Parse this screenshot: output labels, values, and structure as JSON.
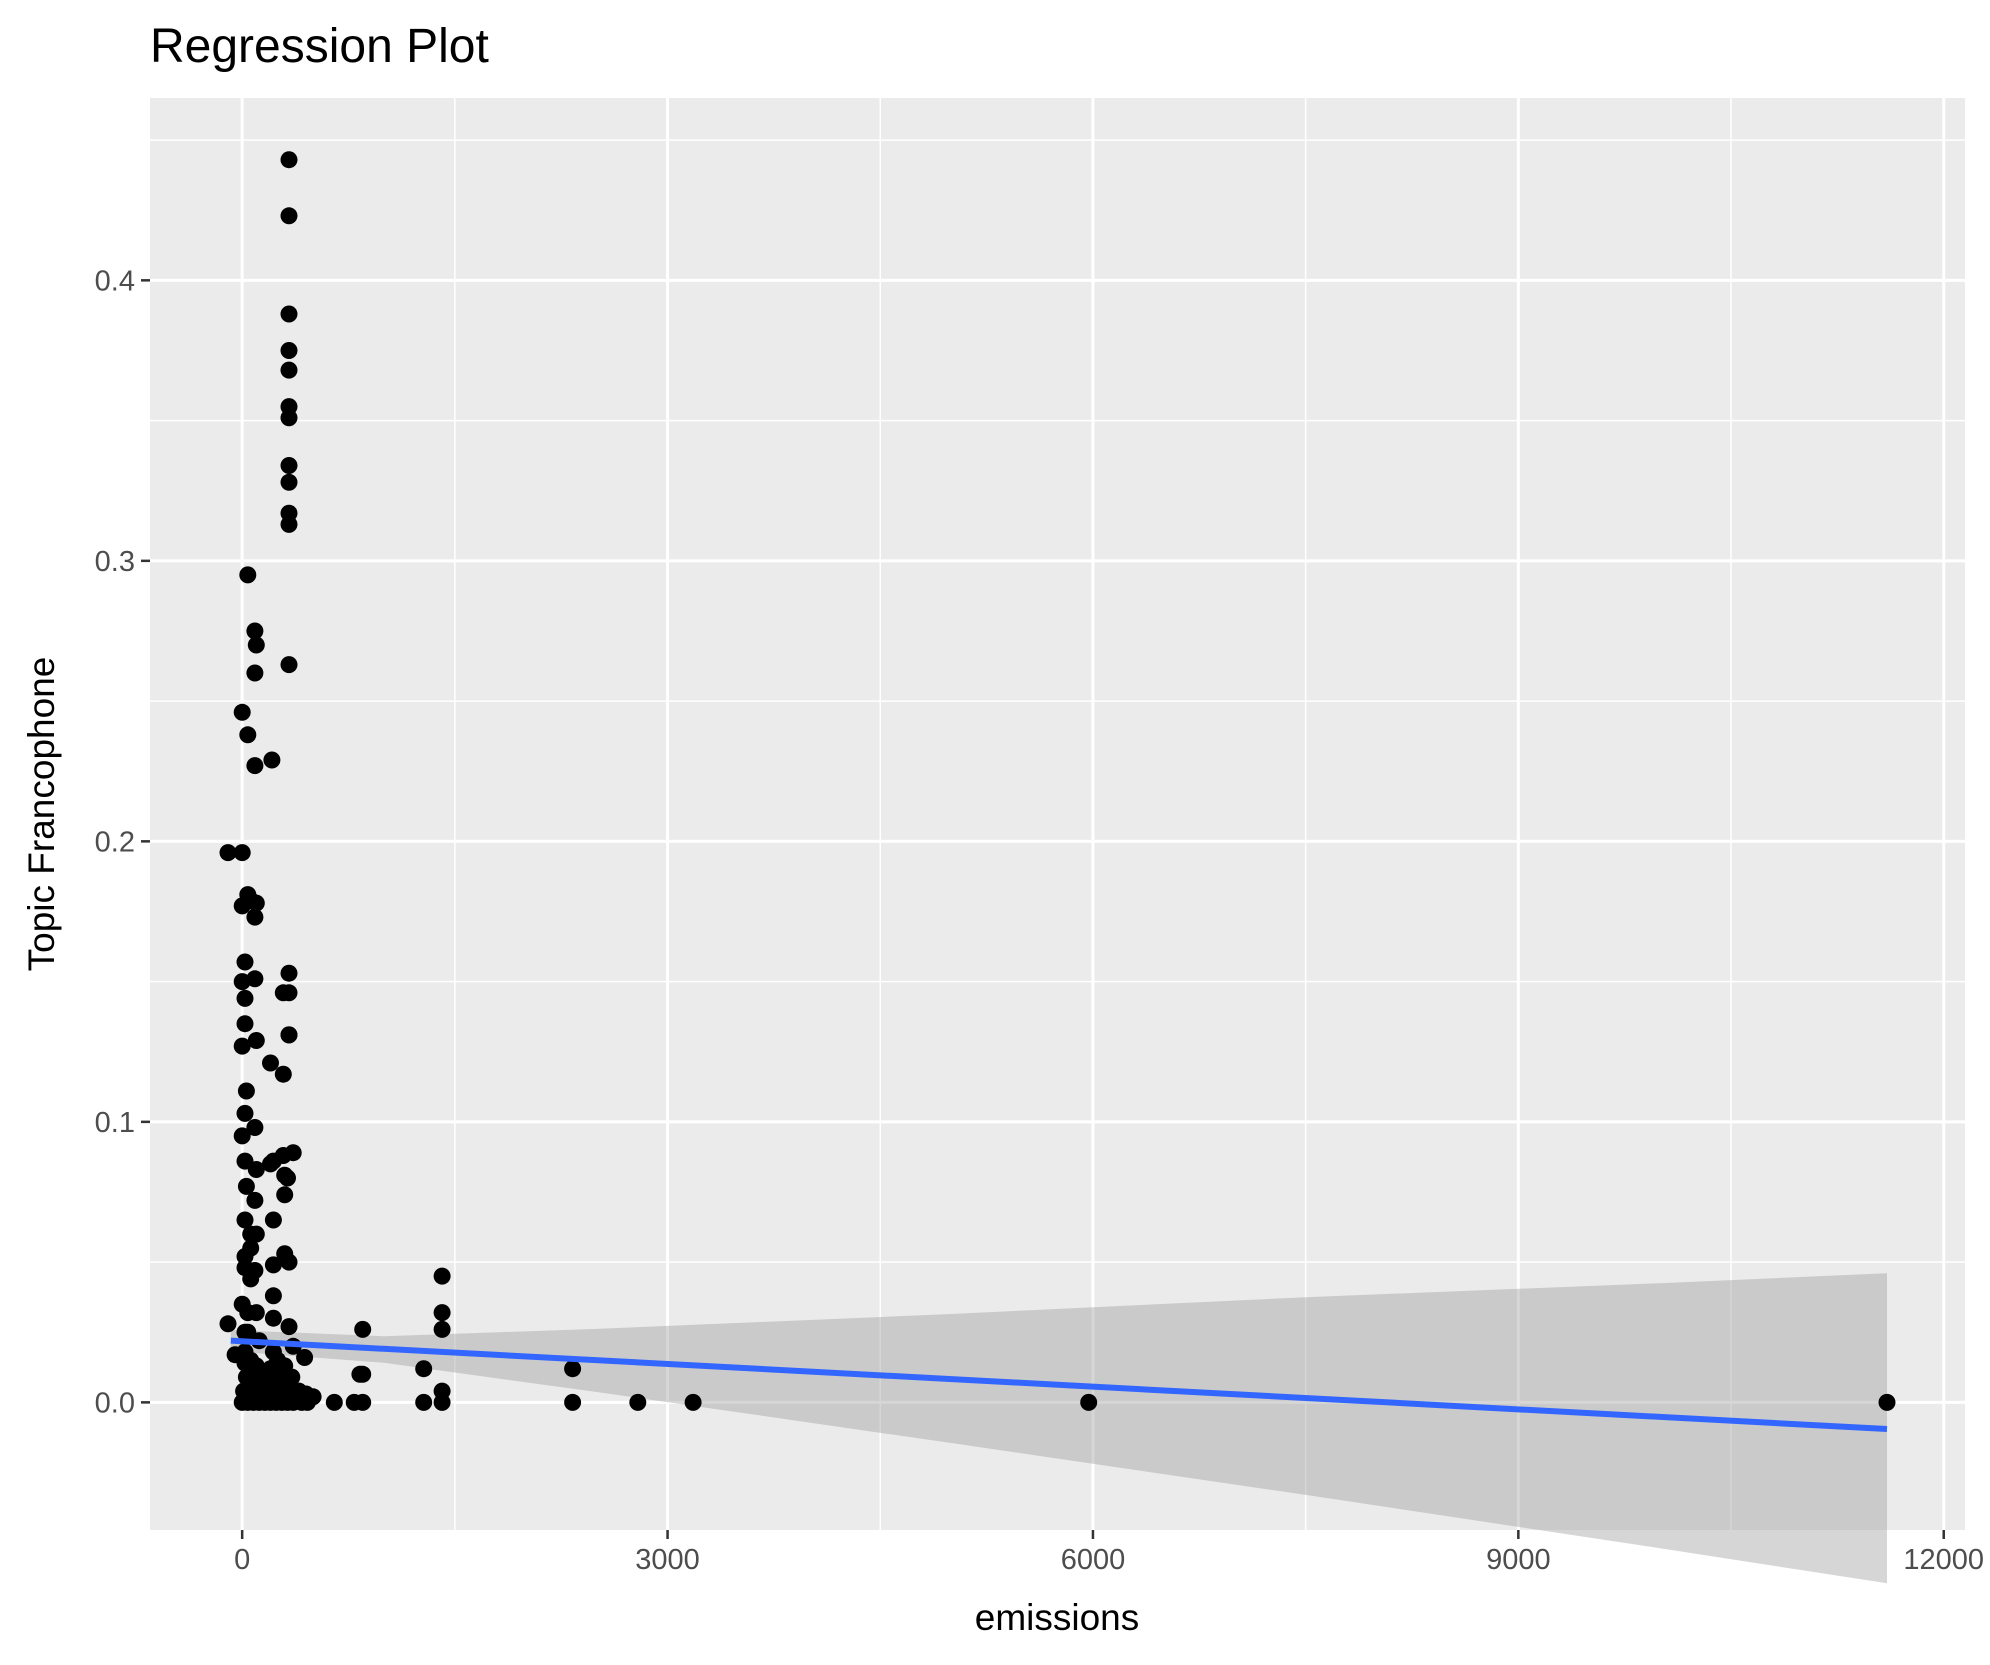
{
  "chart_data": {
    "type": "scatter",
    "title": "Regression Plot",
    "xlabel": "emissions",
    "ylabel": "Topic Francophone",
    "xlim": [
      -650,
      12150
    ],
    "ylim": [
      -0.0455,
      0.465
    ],
    "x_ticks": [
      0,
      3000,
      6000,
      9000,
      12000
    ],
    "x_tick_labels": [
      "0",
      "3000",
      "6000",
      "9000",
      "12000"
    ],
    "y_ticks": [
      0.0,
      0.1,
      0.2,
      0.3,
      0.4
    ],
    "y_tick_labels": [
      "0.0",
      "0.1",
      "0.2",
      "0.3",
      "0.4"
    ],
    "grid": true,
    "legend": "none",
    "colors": {
      "panel_background": "#ebebeb",
      "grid": "#ffffff",
      "points": "#000000",
      "regression_line": "#3366ff",
      "confidence_band": "#999999"
    },
    "regression_line": {
      "x": [
        -80,
        11600
      ],
      "y": [
        0.022,
        -0.0095
      ]
    },
    "confidence_band": {
      "x": [
        -80,
        1000,
        2500,
        5000,
        7500,
        10000,
        11600
      ],
      "upper": [
        0.0258,
        0.0236,
        0.0262,
        0.0315,
        0.0375,
        0.0425,
        0.046
      ],
      "lower": [
        0.0182,
        0.0141,
        0.0037,
        -0.0145,
        -0.033,
        -0.052,
        -0.0645
      ]
    },
    "points": {
      "x": [
        330,
        330,
        330,
        330,
        330,
        330,
        330,
        330,
        330,
        330,
        330,
        330,
        330,
        40,
        90,
        100,
        90,
        330,
        0,
        40,
        90,
        210,
        -100,
        0,
        40,
        60,
        100,
        0,
        90,
        20,
        90,
        330,
        0,
        20,
        290,
        330,
        20,
        100,
        200,
        0,
        290,
        30,
        290,
        90,
        220,
        20,
        200,
        360,
        0,
        300,
        320,
        20,
        100,
        300,
        30,
        220,
        90,
        20,
        60,
        300,
        100,
        20,
        60,
        220,
        20,
        90,
        60,
        330,
        220,
        0,
        40,
        100,
        330,
        220,
        -100,
        20,
        850,
        1410,
        1410,
        40,
        2330,
        1410,
        360,
        120,
        220,
        250,
        440,
        830,
        850,
        1280,
        1410,
        -50,
        20,
        60,
        100,
        150,
        200,
        250,
        300,
        350,
        400,
        450,
        500,
        650,
        790,
        850,
        1280,
        1410,
        2330,
        2790,
        3180,
        5970,
        11600,
        0,
        40,
        80,
        120,
        160,
        200,
        240,
        280,
        320,
        360,
        420,
        460,
        10,
        60,
        110,
        170,
        230,
        270,
        310,
        380,
        30,
        70,
        130,
        190,
        250,
        20,
        80,
        140,
        300,
        350
      ],
      "y": [
        0.443,
        0.423,
        0.388,
        0.375,
        0.368,
        0.355,
        0.351,
        0.334,
        0.328,
        0.317,
        0.313,
        0.263,
        0.153,
        0.295,
        0.275,
        0.27,
        0.26,
        0.131,
        0.246,
        0.238,
        0.227,
        0.229,
        0.196,
        0.196,
        0.181,
        0.179,
        0.178,
        0.177,
        0.173,
        0.157,
        0.151,
        0.146,
        0.15,
        0.144,
        0.146,
        0.131,
        0.135,
        0.129,
        0.121,
        0.127,
        0.117,
        0.111,
        0.088,
        0.098,
        0.086,
        0.103,
        0.085,
        0.089,
        0.095,
        0.081,
        0.08,
        0.086,
        0.083,
        0.074,
        0.077,
        0.065,
        0.072,
        0.065,
        0.06,
        0.053,
        0.06,
        0.052,
        0.055,
        0.049,
        0.048,
        0.047,
        0.044,
        0.05,
        0.038,
        0.035,
        0.032,
        0.032,
        0.027,
        0.03,
        0.028,
        0.025,
        0.026,
        0.045,
        0.032,
        0.025,
        0.012,
        0.026,
        0.02,
        0.022,
        0.018,
        0.015,
        0.016,
        0.01,
        0.01,
        0.012,
        0.004,
        0.017,
        0.018,
        0.015,
        0.013,
        0.01,
        0.012,
        0.008,
        0.006,
        0.005,
        0.004,
        0.003,
        0.002,
        0.0,
        0.0,
        0.0,
        0.0,
        0.0,
        0.0,
        0.0,
        0.0,
        0.0,
        0.0,
        0.0,
        0.0,
        0.0,
        0.0,
        0.0,
        0.0,
        0.0,
        0.0,
        0.0,
        0.0,
        0.0,
        0.0,
        0.004,
        0.006,
        0.002,
        0.003,
        0.005,
        0.002,
        0.004,
        0.001,
        0.009,
        0.011,
        0.007,
        0.008,
        0.006,
        0.014,
        0.012,
        0.01,
        0.013,
        0.009
      ]
    }
  }
}
